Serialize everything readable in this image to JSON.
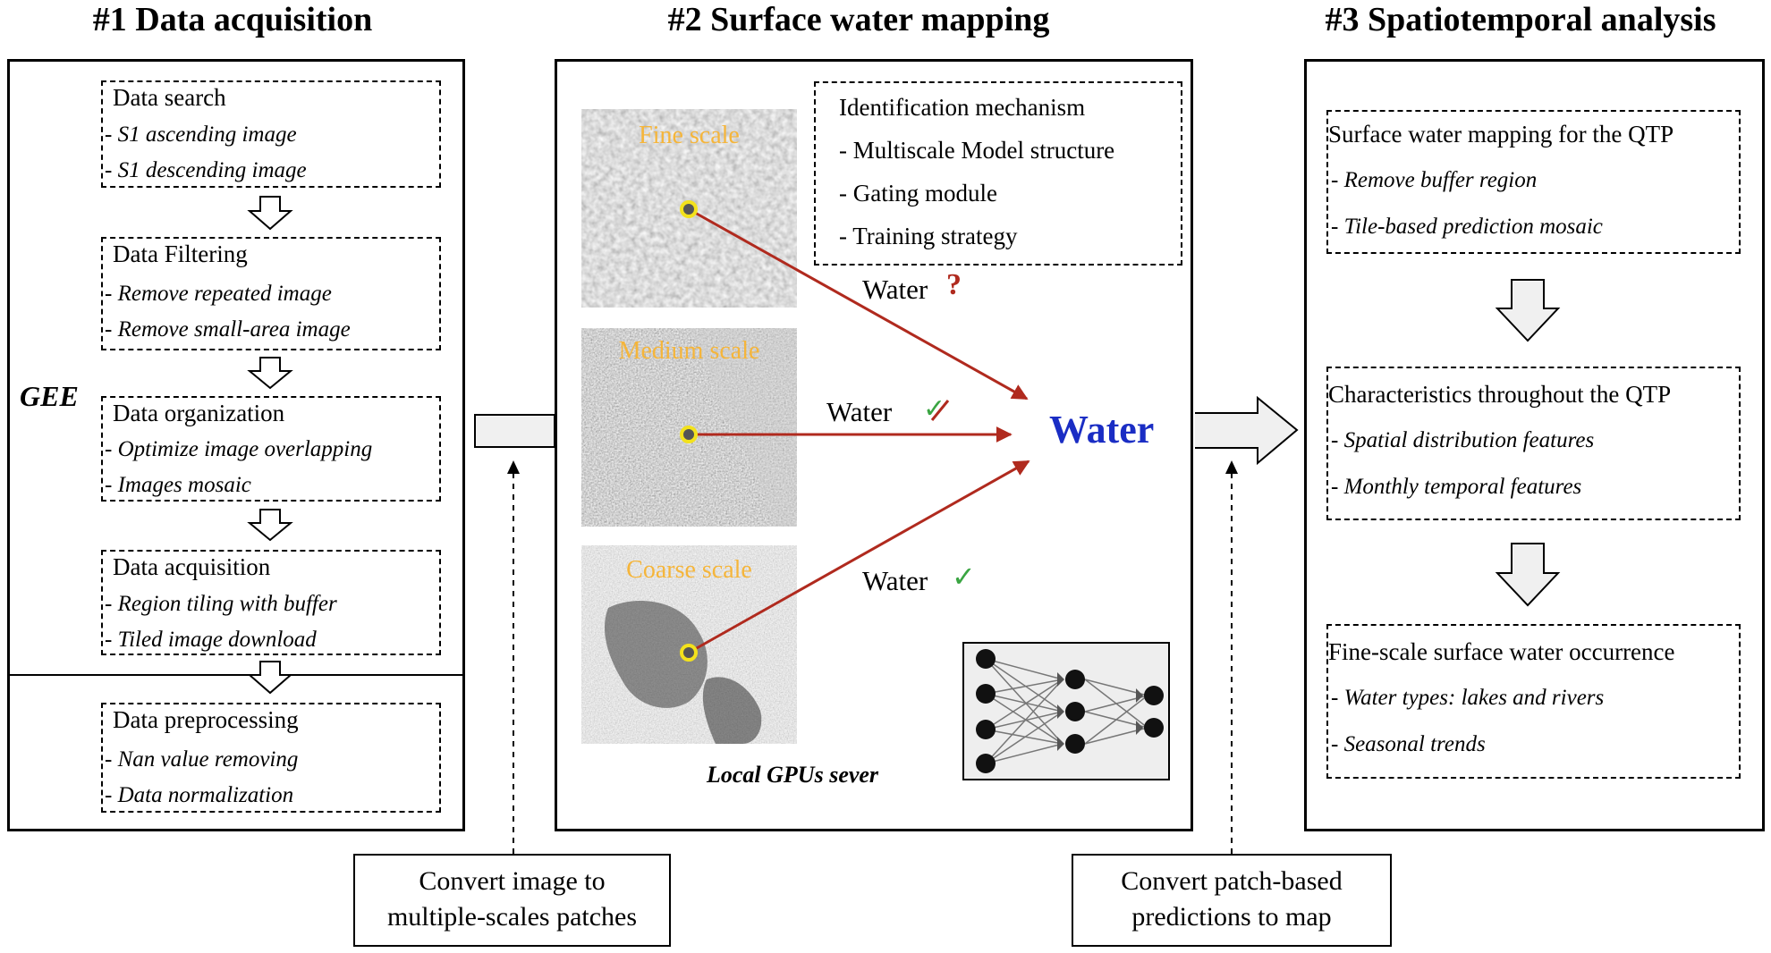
{
  "titles": {
    "s1": "#1 Data acquisition",
    "s2": "#2 Surface water mapping",
    "s3": "#3 Spatiotemporal analysis"
  },
  "left": {
    "gee": "GEE",
    "boxes": [
      {
        "title": "Data search",
        "items": [
          "- S1 ascending image",
          "- S1 descending image"
        ]
      },
      {
        "title": "Data Filtering",
        "items": [
          "- Remove repeated image",
          "- Remove small-area image"
        ]
      },
      {
        "title": "Data organization",
        "items": [
          "- Optimize image overlapping",
          "- Images mosaic"
        ]
      },
      {
        "title": "Data acquisition",
        "items": [
          "- Region tiling with buffer",
          "- Tiled image download"
        ]
      },
      {
        "title": "Data preprocessing",
        "items": [
          "- Nan value removing",
          "- Data normalization"
        ]
      }
    ]
  },
  "middle": {
    "mechanism": {
      "title": "Identification mechanism",
      "items": [
        "- Multiscale Model structure",
        "- Gating module",
        "- Training strategy"
      ]
    },
    "patches": [
      "Fine scale",
      "Medium scale",
      "Coarse scale"
    ],
    "water_labels": [
      "Water",
      "Water",
      "Water"
    ],
    "marks": [
      "?",
      "✓",
      "✓"
    ],
    "output": "Water",
    "server": "Local GPUs sever"
  },
  "right": {
    "boxes": [
      {
        "title": "Surface water mapping for the QTP",
        "items": [
          "- Remove buffer region",
          "- Tile-based prediction mosaic"
        ]
      },
      {
        "title": "Characteristics throughout the QTP",
        "items": [
          "- Spatial distribution features",
          "- Monthly temporal features"
        ]
      },
      {
        "title": "Fine-scale surface water occurrence",
        "items": [
          "- Water types: lakes and rivers",
          "- Seasonal trends"
        ]
      }
    ]
  },
  "notes": {
    "left_lines": [
      "Convert image to",
      "multiple-scales patches"
    ],
    "right_lines": [
      "Convert patch-based",
      "predictions to map"
    ]
  },
  "colors": {
    "arrow_red": "#b02a1e",
    "water_blue": "#1a2dc4",
    "check_green": "#3aa542",
    "scale_label": "#f5b53a",
    "marker_yellow": "#f3e21c"
  }
}
